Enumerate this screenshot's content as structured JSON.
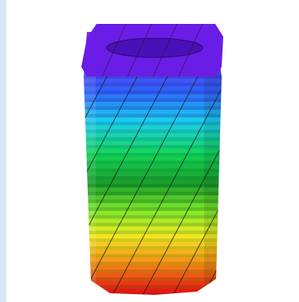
{
  "figure": {
    "subject": "cylinder-rainbow-helix",
    "colors": {
      "top": "#6a1de6",
      "violet": "#5b3cf2",
      "blue": "#2f63ff",
      "cyan": "#19d0f0",
      "green": "#12d85a",
      "darkgreen": "#1a9f2a",
      "lime": "#79e62a",
      "yellow": "#f0ec22",
      "orange": "#f59a16",
      "red": "#e21a12",
      "sidebar": "#d7e6f5"
    }
  }
}
